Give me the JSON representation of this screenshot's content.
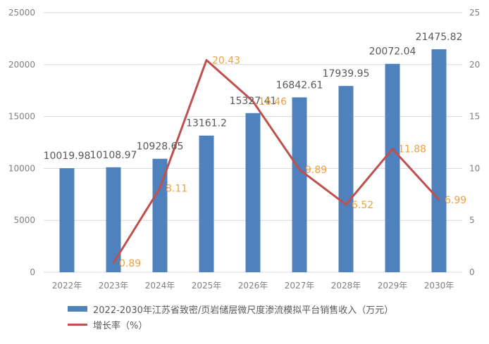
{
  "colors": {
    "bar": "#4f81bd",
    "line": "#c0504d",
    "bar_label": "#595959",
    "line_label": "#f0a040",
    "axis_text": "#7f7f7f",
    "grid": "#d9d9d9"
  },
  "chart_data": {
    "type": "bar",
    "categories": [
      "2022年",
      "2023年",
      "2024年",
      "2025年",
      "2026年",
      "2027年",
      "2028年",
      "2029年",
      "2030年"
    ],
    "series": [
      {
        "name": "2022-2030年江苏省致密/页岩储层微尺度渗流模拟平台销售收入（万元）",
        "type": "bar",
        "axis": "left",
        "values": [
          10019.98,
          10108.97,
          10928.65,
          13161.2,
          15327.41,
          16842.61,
          17939.95,
          20072.04,
          21475.82
        ],
        "labels": [
          "10019.98",
          "10108.97",
          "10928.65",
          "13161.2",
          "15327.41",
          "16842.61",
          "17939.95",
          "20072.04",
          "21475.82"
        ]
      },
      {
        "name": "增长率（%）",
        "type": "line",
        "axis": "right",
        "values": [
          null,
          0.89,
          8.11,
          20.43,
          16.46,
          9.89,
          6.52,
          11.88,
          6.99
        ],
        "labels": [
          "",
          "0.89",
          "8.11",
          "20.43",
          "16.46",
          "9.89",
          "6.52",
          "11.88",
          "6.99"
        ]
      }
    ],
    "y_left": {
      "min": 0,
      "max": 25000,
      "ticks": [
        "0",
        "5000",
        "10000",
        "15000",
        "20000",
        "25000"
      ]
    },
    "y_right": {
      "min": 0,
      "max": 25,
      "ticks": [
        "0",
        "5",
        "10",
        "15",
        "20",
        "25"
      ]
    },
    "grid": true,
    "legend": "bottom"
  }
}
